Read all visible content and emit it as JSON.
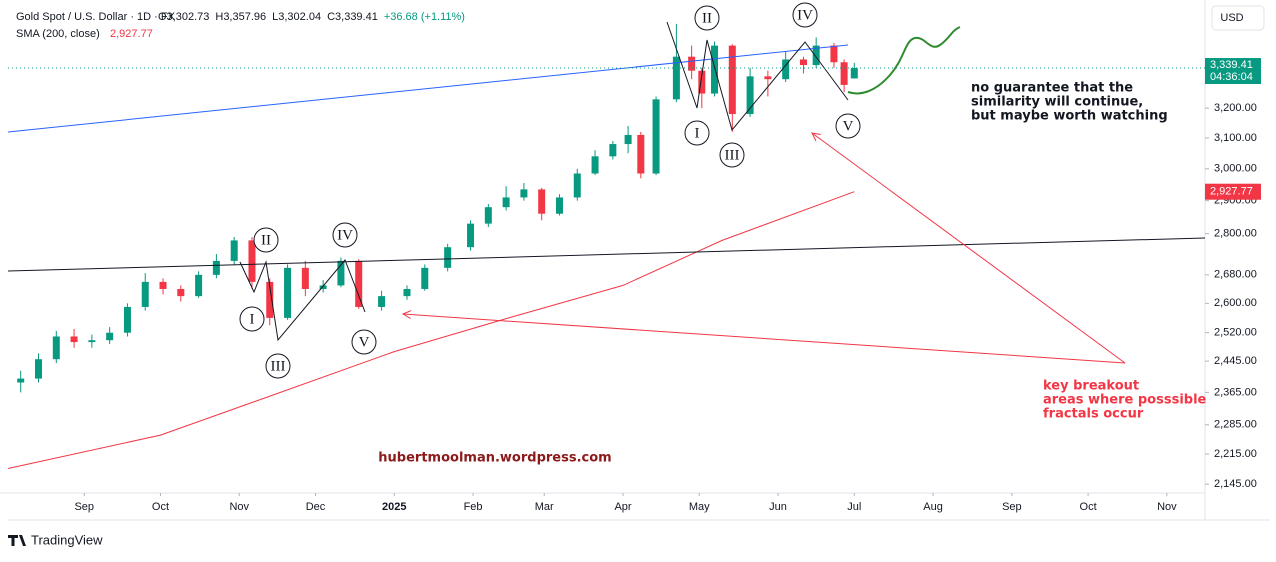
{
  "chart_data": {
    "type": "candlestick",
    "title": "Gold Spot / U.S. Dollar · 1D · FX",
    "header_values": [
      "O3,302.73",
      "H3,357.96",
      "L3,302.04",
      "C3,339.41",
      "+36.68 (+1.11%)"
    ],
    "indicator_name": "SMA (200, close)",
    "indicator_value": "2,927.77",
    "currency": "USD",
    "last_price_label": "3,339.41",
    "countdown": "04:36:04",
    "log_scale": true,
    "xlim": [
      "2024-08-02",
      "2025-11-16"
    ],
    "xticks": [
      {
        "value": "2024-09-01",
        "label": "Sep"
      },
      {
        "value": "2024-10-01",
        "label": "Oct"
      },
      {
        "value": "2024-11-01",
        "label": "Nov"
      },
      {
        "value": "2024-12-01",
        "label": "Dec"
      },
      {
        "value": "2025-01-01",
        "label": "2025"
      },
      {
        "value": "2025-02-01",
        "label": "Feb"
      },
      {
        "value": "2025-03-01",
        "label": "Mar"
      },
      {
        "value": "2025-04-01",
        "label": "Apr"
      },
      {
        "value": "2025-05-01",
        "label": "May"
      },
      {
        "value": "2025-06-01",
        "label": "Jun"
      },
      {
        "value": "2025-07-01",
        "label": "Jul"
      },
      {
        "value": "2025-08-01",
        "label": "Aug"
      },
      {
        "value": "2025-09-01",
        "label": "Sep"
      },
      {
        "value": "2025-10-01",
        "label": "Oct"
      },
      {
        "value": "2025-11-01",
        "label": "Nov"
      }
    ],
    "ylim": [
      2125,
      3590
    ],
    "yticks": [
      {
        "value": 3200,
        "label": "3,200.00"
      },
      {
        "value": 3100,
        "label": "3,100.00"
      },
      {
        "value": 3000,
        "label": "3,000.00"
      },
      {
        "value": 2900,
        "label": "2,900.00"
      },
      {
        "value": 2800,
        "label": "2,800.00"
      },
      {
        "value": 2680,
        "label": "2,680.00"
      },
      {
        "value": 2600,
        "label": "2,600.00"
      },
      {
        "value": 2520,
        "label": "2,520.00"
      },
      {
        "value": 2445,
        "label": "2,445.00"
      },
      {
        "value": 2365,
        "label": "2,365.00"
      },
      {
        "value": 2285,
        "label": "2,285.00"
      },
      {
        "value": 2215,
        "label": "2,215.00"
      },
      {
        "value": 2145,
        "label": "2,145.00"
      }
    ],
    "up_color": "#089981",
    "down_color": "#f23645",
    "dates": [
      "2024-08-07",
      "2024-08-14",
      "2024-08-21",
      "2024-08-28",
      "2024-09-04",
      "2024-09-11",
      "2024-09-18",
      "2024-09-25",
      "2024-10-02",
      "2024-10-09",
      "2024-10-16",
      "2024-10-23",
      "2024-10-30",
      "2024-11-06",
      "2024-11-13",
      "2024-11-20",
      "2024-11-27",
      "2024-12-04",
      "2024-12-11",
      "2024-12-18",
      "2024-12-27",
      "2025-01-06",
      "2025-01-13",
      "2025-01-22",
      "2025-01-31",
      "2025-02-07",
      "2025-02-14",
      "2025-02-21",
      "2025-02-28",
      "2025-03-07",
      "2025-03-14",
      "2025-03-21",
      "2025-03-28",
      "2025-04-03",
      "2025-04-08",
      "2025-04-14",
      "2025-04-22",
      "2025-04-28",
      "2025-05-02",
      "2025-05-07",
      "2025-05-14",
      "2025-05-21",
      "2025-05-28",
      "2025-06-04",
      "2025-06-11",
      "2025-06-16",
      "2025-06-23",
      "2025-06-27",
      "2025-07-01"
    ],
    "candles": [
      [
        2390,
        2420,
        2365,
        2400
      ],
      [
        2400,
        2465,
        2390,
        2450
      ],
      [
        2450,
        2525,
        2440,
        2510
      ],
      [
        2510,
        2530,
        2480,
        2495
      ],
      [
        2495,
        2515,
        2480,
        2500
      ],
      [
        2500,
        2535,
        2490,
        2520
      ],
      [
        2520,
        2600,
        2510,
        2590
      ],
      [
        2590,
        2685,
        2580,
        2660
      ],
      [
        2660,
        2670,
        2625,
        2640
      ],
      [
        2640,
        2650,
        2605,
        2620
      ],
      [
        2620,
        2690,
        2615,
        2680
      ],
      [
        2680,
        2740,
        2670,
        2720
      ],
      [
        2720,
        2790,
        2710,
        2780
      ],
      [
        2780,
        2790,
        2640,
        2660
      ],
      [
        2660,
        2670,
        2540,
        2560
      ],
      [
        2560,
        2710,
        2555,
        2700
      ],
      [
        2700,
        2720,
        2620,
        2640
      ],
      [
        2640,
        2665,
        2630,
        2650
      ],
      [
        2650,
        2730,
        2645,
        2720
      ],
      [
        2720,
        2725,
        2585,
        2590
      ],
      [
        2590,
        2635,
        2580,
        2620
      ],
      [
        2620,
        2650,
        2610,
        2640
      ],
      [
        2640,
        2710,
        2635,
        2700
      ],
      [
        2700,
        2770,
        2690,
        2760
      ],
      [
        2760,
        2840,
        2750,
        2830
      ],
      [
        2830,
        2890,
        2820,
        2880
      ],
      [
        2880,
        2945,
        2870,
        2910
      ],
      [
        2910,
        2955,
        2900,
        2935
      ],
      [
        2935,
        2940,
        2840,
        2860
      ],
      [
        2860,
        2920,
        2855,
        2910
      ],
      [
        2910,
        3000,
        2900,
        2985
      ],
      [
        2985,
        3060,
        2980,
        3040
      ],
      [
        3040,
        3090,
        3030,
        3080
      ],
      [
        3080,
        3140,
        3050,
        3110
      ],
      [
        3110,
        3120,
        2970,
        2985
      ],
      [
        2985,
        3240,
        2980,
        3230
      ],
      [
        3230,
        3500,
        3220,
        3380
      ],
      [
        3380,
        3420,
        3300,
        3330
      ],
      [
        3330,
        3340,
        3200,
        3250
      ],
      [
        3250,
        3435,
        3240,
        3420
      ],
      [
        3420,
        3425,
        3120,
        3180
      ],
      [
        3180,
        3340,
        3170,
        3310
      ],
      [
        3310,
        3330,
        3240,
        3300
      ],
      [
        3300,
        3400,
        3290,
        3370
      ],
      [
        3370,
        3380,
        3320,
        3350
      ],
      [
        3350,
        3450,
        3340,
        3420
      ],
      [
        3420,
        3430,
        3340,
        3360
      ],
      [
        3360,
        3370,
        3255,
        3280
      ],
      [
        3302.73,
        3357.96,
        3302.04,
        3339.41
      ]
    ],
    "sma": {
      "color": "#f23645",
      "x": [
        "2024-08-02",
        "2024-10-01",
        "2024-11-15",
        "2025-01-01",
        "2025-02-15",
        "2025-04-01",
        "2025-05-10",
        "2025-07-01"
      ],
      "values": [
        2181,
        2260,
        2360,
        2470,
        2560,
        2650,
        2780,
        2927.77
      ]
    },
    "wave_labels": [
      "II",
      "IV",
      "I",
      "III",
      "V",
      "II",
      "IV",
      "I",
      "III",
      "V"
    ],
    "note_right": [
      "no guarantee that the",
      "similarity will continue,",
      "but maybe worth watching"
    ],
    "note_red": [
      "key breakout",
      "areas where posssible",
      "fractals occur"
    ],
    "watermark": "hubertmoolman.wordpress.com",
    "brand": "TradingView"
  }
}
